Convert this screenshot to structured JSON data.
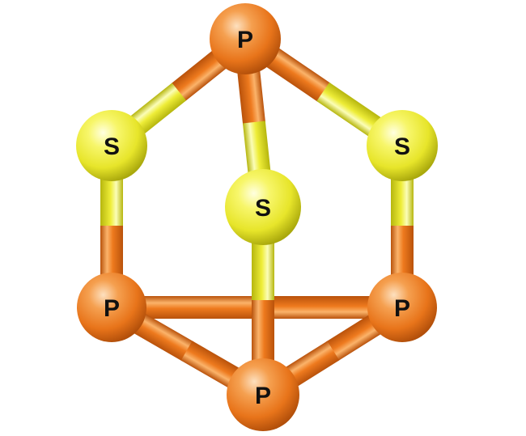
{
  "molecule": {
    "atoms": [
      {
        "id": "p-top",
        "element": "P",
        "label": "P"
      },
      {
        "id": "s-left",
        "element": "S",
        "label": "S"
      },
      {
        "id": "s-right",
        "element": "S",
        "label": "S"
      },
      {
        "id": "s-center",
        "element": "S",
        "label": "S"
      },
      {
        "id": "p-left",
        "element": "P",
        "label": "P"
      },
      {
        "id": "p-right",
        "element": "P",
        "label": "P"
      },
      {
        "id": "p-bottom",
        "element": "P",
        "label": "P"
      }
    ],
    "bonds": [
      [
        "p-left",
        "p-right"
      ],
      [
        "p-left",
        "p-bottom"
      ],
      [
        "p-right",
        "p-bottom"
      ],
      [
        "s-center",
        "p-bottom"
      ],
      [
        "p-top",
        "s-left"
      ],
      [
        "p-top",
        "s-right"
      ],
      [
        "p-top",
        "s-center"
      ],
      [
        "s-left",
        "p-left"
      ],
      [
        "s-right",
        "p-right"
      ]
    ],
    "colors": {
      "P": {
        "light": "#fbb36a",
        "mid": "#ee7a1e",
        "dark": "#b9520b"
      },
      "S": {
        "light": "#fbfdb8",
        "mid": "#eeed38",
        "dark": "#b6b60e"
      }
    }
  }
}
